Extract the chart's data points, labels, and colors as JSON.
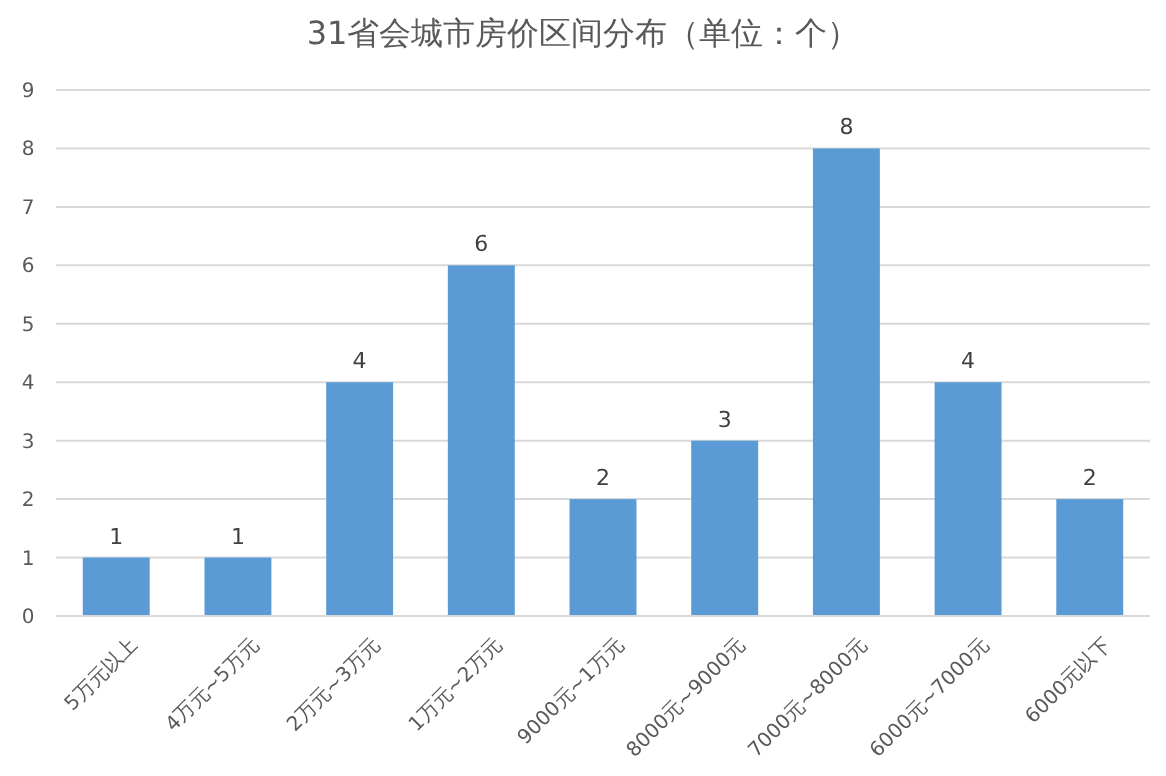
{
  "chart_data": {
    "type": "bar",
    "title": "31省会城市房价区间分布（单位：个）",
    "categories": [
      "5万元以上",
      "4万元~5万元",
      "2万元~3万元",
      "1万元~2万元",
      "9000元~1万元",
      "8000元~9000元",
      "7000元~8000元",
      "6000元~7000元",
      "6000元以下"
    ],
    "values": [
      1,
      1,
      4,
      6,
      2,
      3,
      8,
      4,
      2
    ],
    "color": "#5b9bd5",
    "ylim": [
      0,
      9
    ],
    "yticks": [
      0,
      1,
      2,
      3,
      4,
      5,
      6,
      7,
      8,
      9
    ],
    "grid": "y",
    "data_labels": true
  }
}
